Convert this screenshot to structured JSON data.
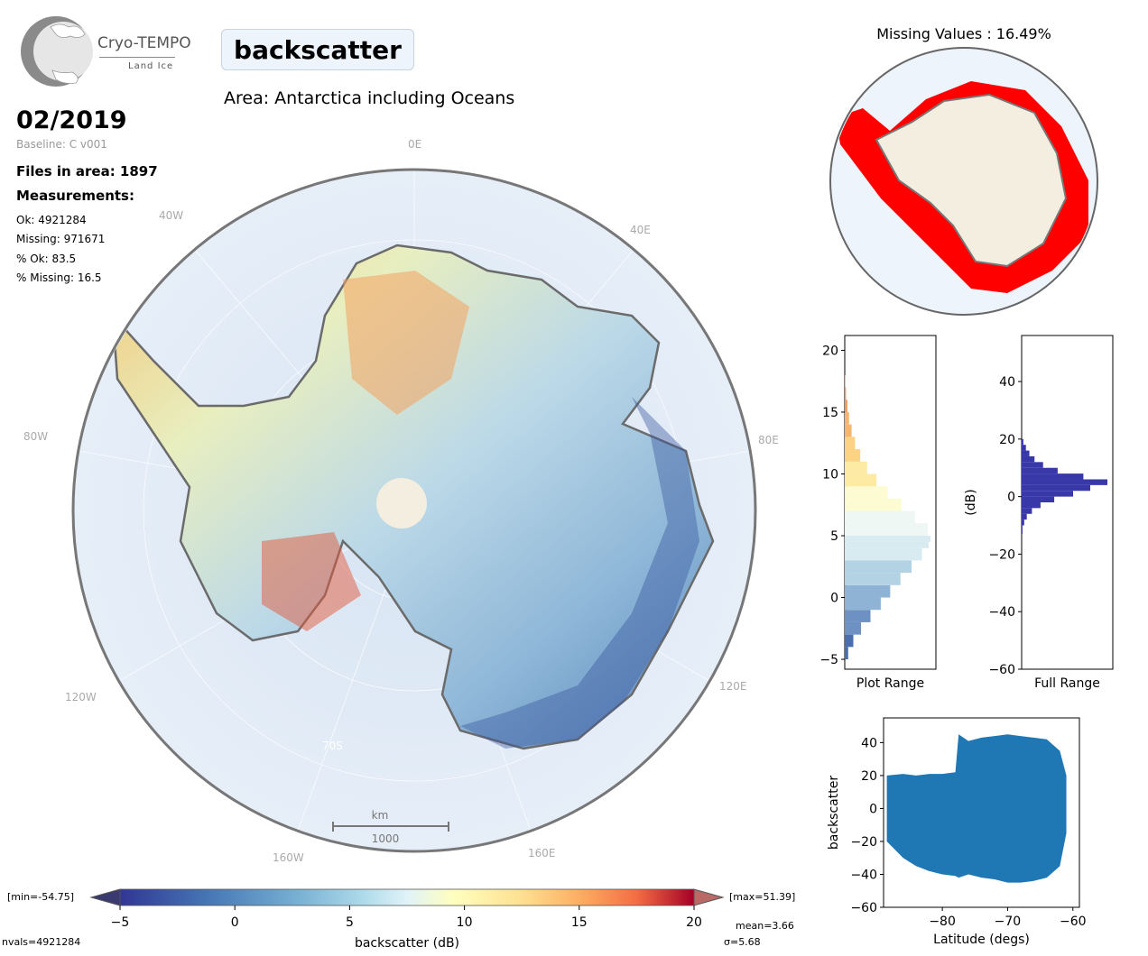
{
  "logo": {
    "name": "Cryo-TEMPO",
    "subtitle": "Land Ice"
  },
  "parameter": "backscatter",
  "area_title": "Area: Antarctica including Oceans",
  "date": "02/2019",
  "baseline": "Baseline: C v001",
  "files": "Files in area: 1897",
  "measurements_title": "Measurements:",
  "stats": {
    "ok": "Ok: 4921284",
    "missing": "Missing: 971671",
    "pct_ok": "% Ok: 83.5",
    "pct_missing": "% Missing: 16.5",
    "min": "[min=-54.75]",
    "max": "[max=51.39]",
    "mean": "mean=3.66",
    "sigma": "σ=5.68",
    "nvals": "nvals=4921284"
  },
  "missing_title": "Missing Values : 16.49%",
  "colors": {
    "missing": "#ff0000",
    "land": "#f3eedf",
    "ocean": "#dce8f5",
    "histogram_full": "#3838a8",
    "scatter": "#1f77b4"
  },
  "chart_data": [
    {
      "type": "map",
      "graticule_labels": [
        "0E",
        "40E",
        "80E",
        "120E",
        "160E",
        "160W",
        "120W",
        "80W",
        "40W",
        "70S"
      ],
      "scale_bar": {
        "unit": "km",
        "length": "1000"
      },
      "colorbar": {
        "label": "backscatter (dB)",
        "ticks": [
          "−5",
          "0",
          "5",
          "10",
          "15",
          "20"
        ],
        "range": [
          -5,
          20
        ],
        "colormap": "RdYlBu_r"
      }
    },
    {
      "type": "map",
      "title": "Missing Values : 16.49%"
    },
    {
      "type": "bar",
      "orientation": "horizontal",
      "xlabel": "Plot Range",
      "ylim": [
        -5.8,
        21.2
      ],
      "yticks": [
        "−5",
        "0",
        "5",
        "10",
        "15",
        "20"
      ],
      "bins": [
        -5,
        -4,
        -3,
        -2,
        -1,
        0,
        1,
        2,
        3,
        4,
        4.5,
        5,
        6,
        7,
        8,
        9,
        10,
        11,
        12,
        13,
        14,
        15,
        16,
        17
      ],
      "values": [
        0.04,
        0.1,
        0.19,
        0.3,
        0.42,
        0.53,
        0.65,
        0.78,
        0.9,
        0.98,
        1.0,
        0.97,
        0.82,
        0.66,
        0.5,
        0.37,
        0.26,
        0.18,
        0.12,
        0.08,
        0.05,
        0.03,
        0.015,
        0.005
      ]
    },
    {
      "type": "bar",
      "orientation": "horizontal",
      "xlabel": "Full Range",
      "ylabel": "(dB)",
      "ylim": [
        -60,
        56
      ],
      "yticks": [
        "−60",
        "−40",
        "−20",
        "0",
        "20",
        "40"
      ],
      "bins": [
        -13,
        -10,
        -8,
        -6,
        -4,
        -2,
        0,
        2,
        4,
        6,
        8,
        10,
        12,
        14,
        16,
        18
      ],
      "values": [
        0.01,
        0.03,
        0.06,
        0.12,
        0.22,
        0.38,
        0.6,
        0.8,
        1.0,
        0.72,
        0.42,
        0.25,
        0.15,
        0.09,
        0.05,
        0.02
      ]
    },
    {
      "type": "scatter",
      "xlabel": "Latitude (degs)",
      "ylabel": "backscatter",
      "xlim": [
        -89,
        -59
      ],
      "ylim": [
        -60,
        55
      ],
      "xticks": [
        "−80",
        "−70",
        "−60"
      ],
      "yticks": [
        "−60",
        "−40",
        "−20",
        "0",
        "20",
        "40"
      ],
      "envelope": {
        "lat": [
          -88.5,
          -86,
          -84,
          -82,
          -80,
          -78,
          -77.5,
          -76,
          -74,
          -72,
          -70,
          -68,
          -66,
          -64,
          -62,
          -61
        ],
        "upper": [
          20,
          21,
          20,
          21,
          21,
          22,
          45,
          41,
          43,
          44,
          45,
          44,
          43,
          42,
          35,
          20
        ],
        "lower": [
          -20,
          -30,
          -35,
          -38,
          -40,
          -41,
          -42,
          -40,
          -42,
          -43,
          -45,
          -45,
          -44,
          -42,
          -35,
          -15
        ]
      }
    }
  ]
}
